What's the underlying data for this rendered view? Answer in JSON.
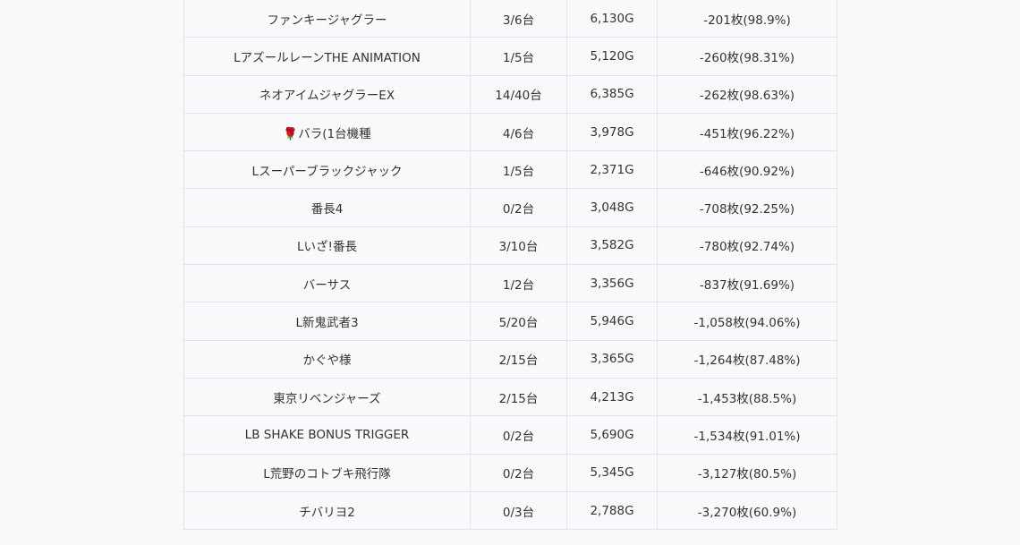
{
  "rows": [
    {
      "name": "ファンキージャグラー",
      "machines": "3/6台",
      "games": "6,130G",
      "result": "-201枚(98.9%)"
    },
    {
      "name": "LアズールレーンTHE ANIMATION",
      "machines": "1/5台",
      "games": "5,120G",
      "result": "-260枚(98.31%)"
    },
    {
      "name": "ネオアイムジャグラーEX",
      "machines": "14/40台",
      "games": "6,385G",
      "result": "-262枚(98.63%)"
    },
    {
      "name": "🌹バラ(1台機種",
      "machines": "4/6台",
      "games": "3,978G",
      "result": "-451枚(96.22%)"
    },
    {
      "name": "Lスーパーブラックジャック",
      "machines": "1/5台",
      "games": "2,371G",
      "result": "-646枚(90.92%)"
    },
    {
      "name": "番長4",
      "machines": "0/2台",
      "games": "3,048G",
      "result": "-708枚(92.25%)"
    },
    {
      "name": "Lいざ!番長",
      "machines": "3/10台",
      "games": "3,582G",
      "result": "-780枚(92.74%)"
    },
    {
      "name": "バーサス",
      "machines": "1/2台",
      "games": "3,356G",
      "result": "-837枚(91.69%)"
    },
    {
      "name": "L新鬼武者3",
      "machines": "5/20台",
      "games": "5,946G",
      "result": "-1,058枚(94.06%)"
    },
    {
      "name": "かぐや様",
      "machines": "2/15台",
      "games": "3,365G",
      "result": "-1,264枚(87.48%)"
    },
    {
      "name": "東京リベンジャーズ",
      "machines": "2/15台",
      "games": "4,213G",
      "result": "-1,453枚(88.5%)"
    },
    {
      "name": "LB SHAKE BONUS TRIGGER",
      "machines": "0/2台",
      "games": "5,690G",
      "result": "-1,534枚(91.01%)"
    },
    {
      "name": "L荒野のコトブキ飛行隊",
      "machines": "0/2台",
      "games": "5,345G",
      "result": "-3,127枚(80.5%)"
    },
    {
      "name": "チバリヨ2",
      "machines": "0/3台",
      "games": "2,788G",
      "result": "-3,270枚(60.9%)"
    }
  ]
}
